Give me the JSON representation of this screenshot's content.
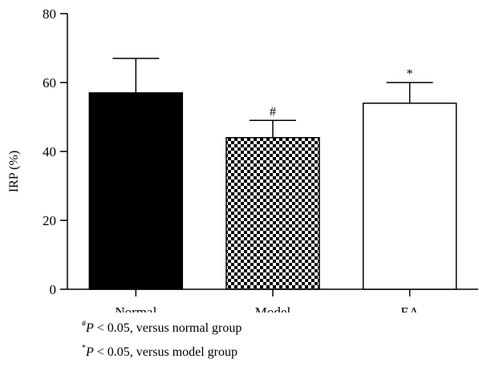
{
  "chart_data": {
    "type": "bar",
    "categories": [
      "Normal",
      "Model",
      "EA"
    ],
    "values": [
      57,
      44,
      54
    ],
    "errors": [
      10,
      5,
      6
    ],
    "annotations": [
      "",
      "#",
      "*"
    ],
    "patterns": [
      "solid-black",
      "checkerboard",
      "white"
    ],
    "ylabel": "IRP (%)",
    "xlabel": "",
    "ylim": [
      0,
      80
    ],
    "yticks": [
      0,
      20,
      40,
      60,
      80
    ],
    "grid": false
  },
  "footnotes": [
    {
      "mark": "#",
      "var": "P",
      "text": " < 0.05, versus normal group"
    },
    {
      "mark": "*",
      "var": "P",
      "text": " < 0.05, versus model group"
    }
  ]
}
